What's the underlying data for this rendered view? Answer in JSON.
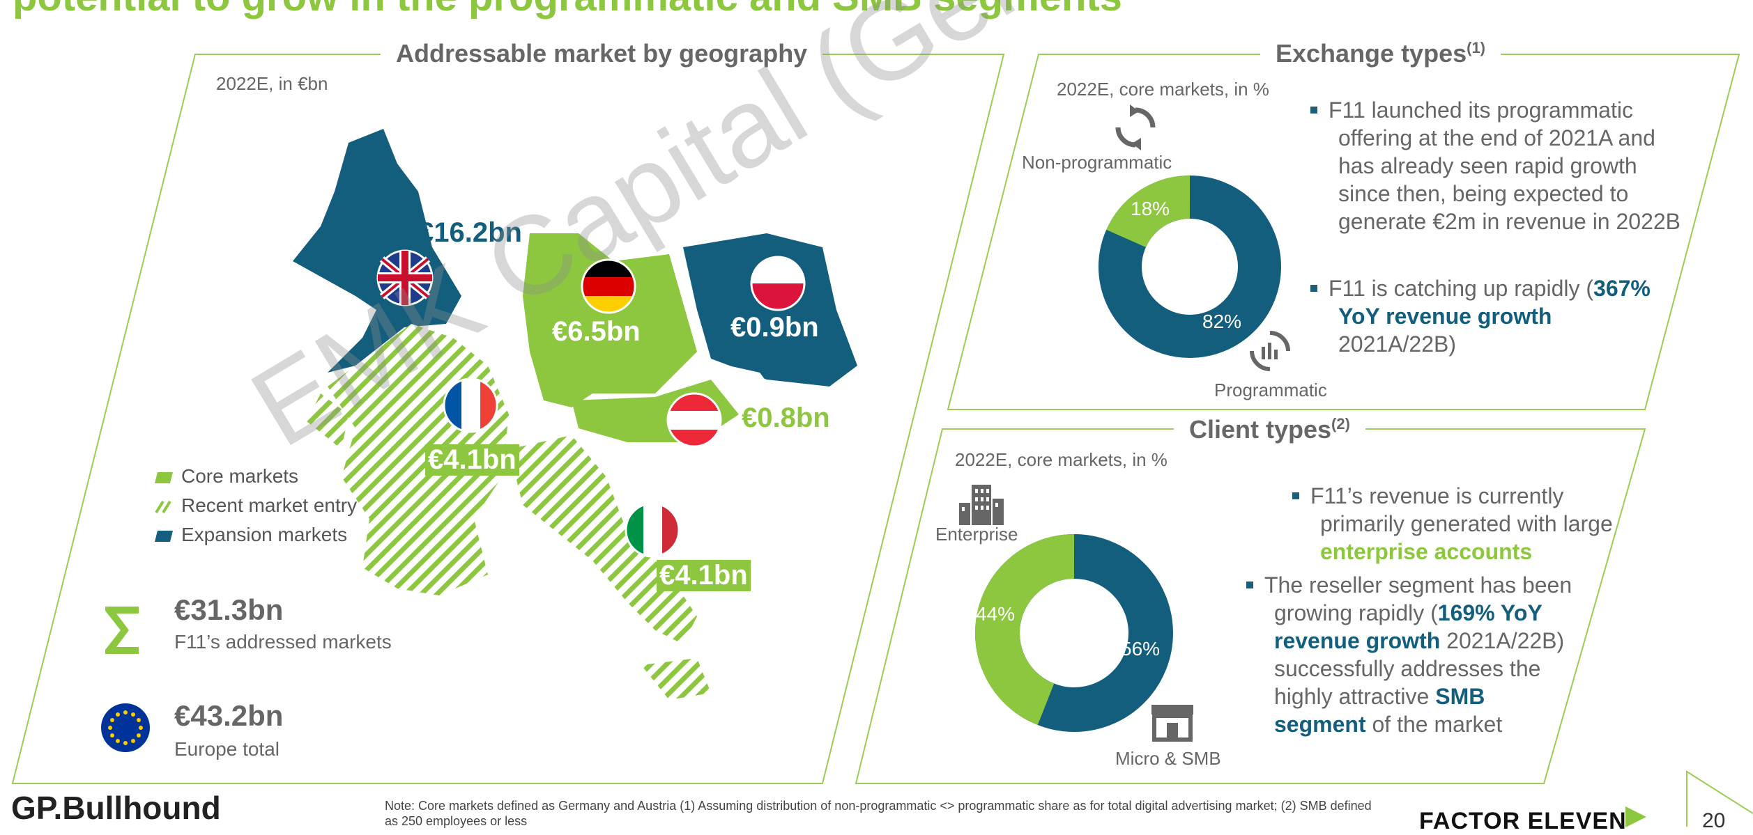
{
  "headline": "potential to grow in the programmatic and SMB segments",
  "geo": {
    "title": "Addressable market by geography",
    "subtitle": "2022E, in €bn",
    "labels": {
      "uk": "€16.2bn",
      "de": "€6.5bn",
      "pl": "€0.9bn",
      "at": "€0.8bn",
      "fr": "€4.1bn",
      "it": "€4.1bn"
    },
    "legend": [
      "Core markets",
      "Recent market entry",
      "Expansion markets"
    ],
    "totals": [
      {
        "value": "€31.3bn",
        "label": "F11’s addressed markets",
        "icon": "sigma-icon"
      },
      {
        "value": "€43.2bn",
        "label": "Europe total",
        "icon": "eu-flag-icon"
      }
    ]
  },
  "exchange": {
    "title": "Exchange types",
    "title_sup": "(1)",
    "subtitle": "2022E, core markets, in %",
    "label_top": "Non-programmatic",
    "label_bottom": "Programmatic",
    "pct_green": "18%",
    "pct_blue": "82%",
    "bullet1": "F11 launched its programmatic offering at the end of 2021A and has already seen rapid growth since then, being expected to generate €2m in revenue in 2022B",
    "bullet2_pre": "F11 is catching up rapidly (",
    "bullet2_hl": "367% YoY revenue growth",
    "bullet2_post": " 2021A/22B)"
  },
  "client": {
    "title": "Client types",
    "title_sup": "(2)",
    "subtitle": "2022E, core markets, in %",
    "label_top": "Enterprise",
    "label_bottom": "Micro & SMB",
    "pct_green": "44%",
    "pct_blue": "56%",
    "bullet1_pre": "F11’s revenue is currently primarily generated with large ",
    "bullet1_hl": "enterprise accounts",
    "bullet2_pre": "The reseller segment has been growing rapidly (",
    "bullet2_hl": "169% YoY revenue growth",
    "bullet2_mid": " 2021A/22B) successfully addresses the highly attractive ",
    "bullet2_hl2": "SMB segment",
    "bullet2_post": " of the market"
  },
  "footer": {
    "logo_left": "GP.Bullhound",
    "note": "Note: Core markets defined as Germany and Austria (1) Assuming distribution of non-programmatic <> programmatic share as for total digital advertising market; (2) SMB defined as 250 employees or less",
    "logo_right": "FACTOR ELEVEN",
    "page": "20"
  },
  "watermark": "EMK Capital (Germany) GmbH",
  "colors": {
    "green": "#8dc63f",
    "blue": "#135e7d",
    "grey": "#666666"
  }
}
